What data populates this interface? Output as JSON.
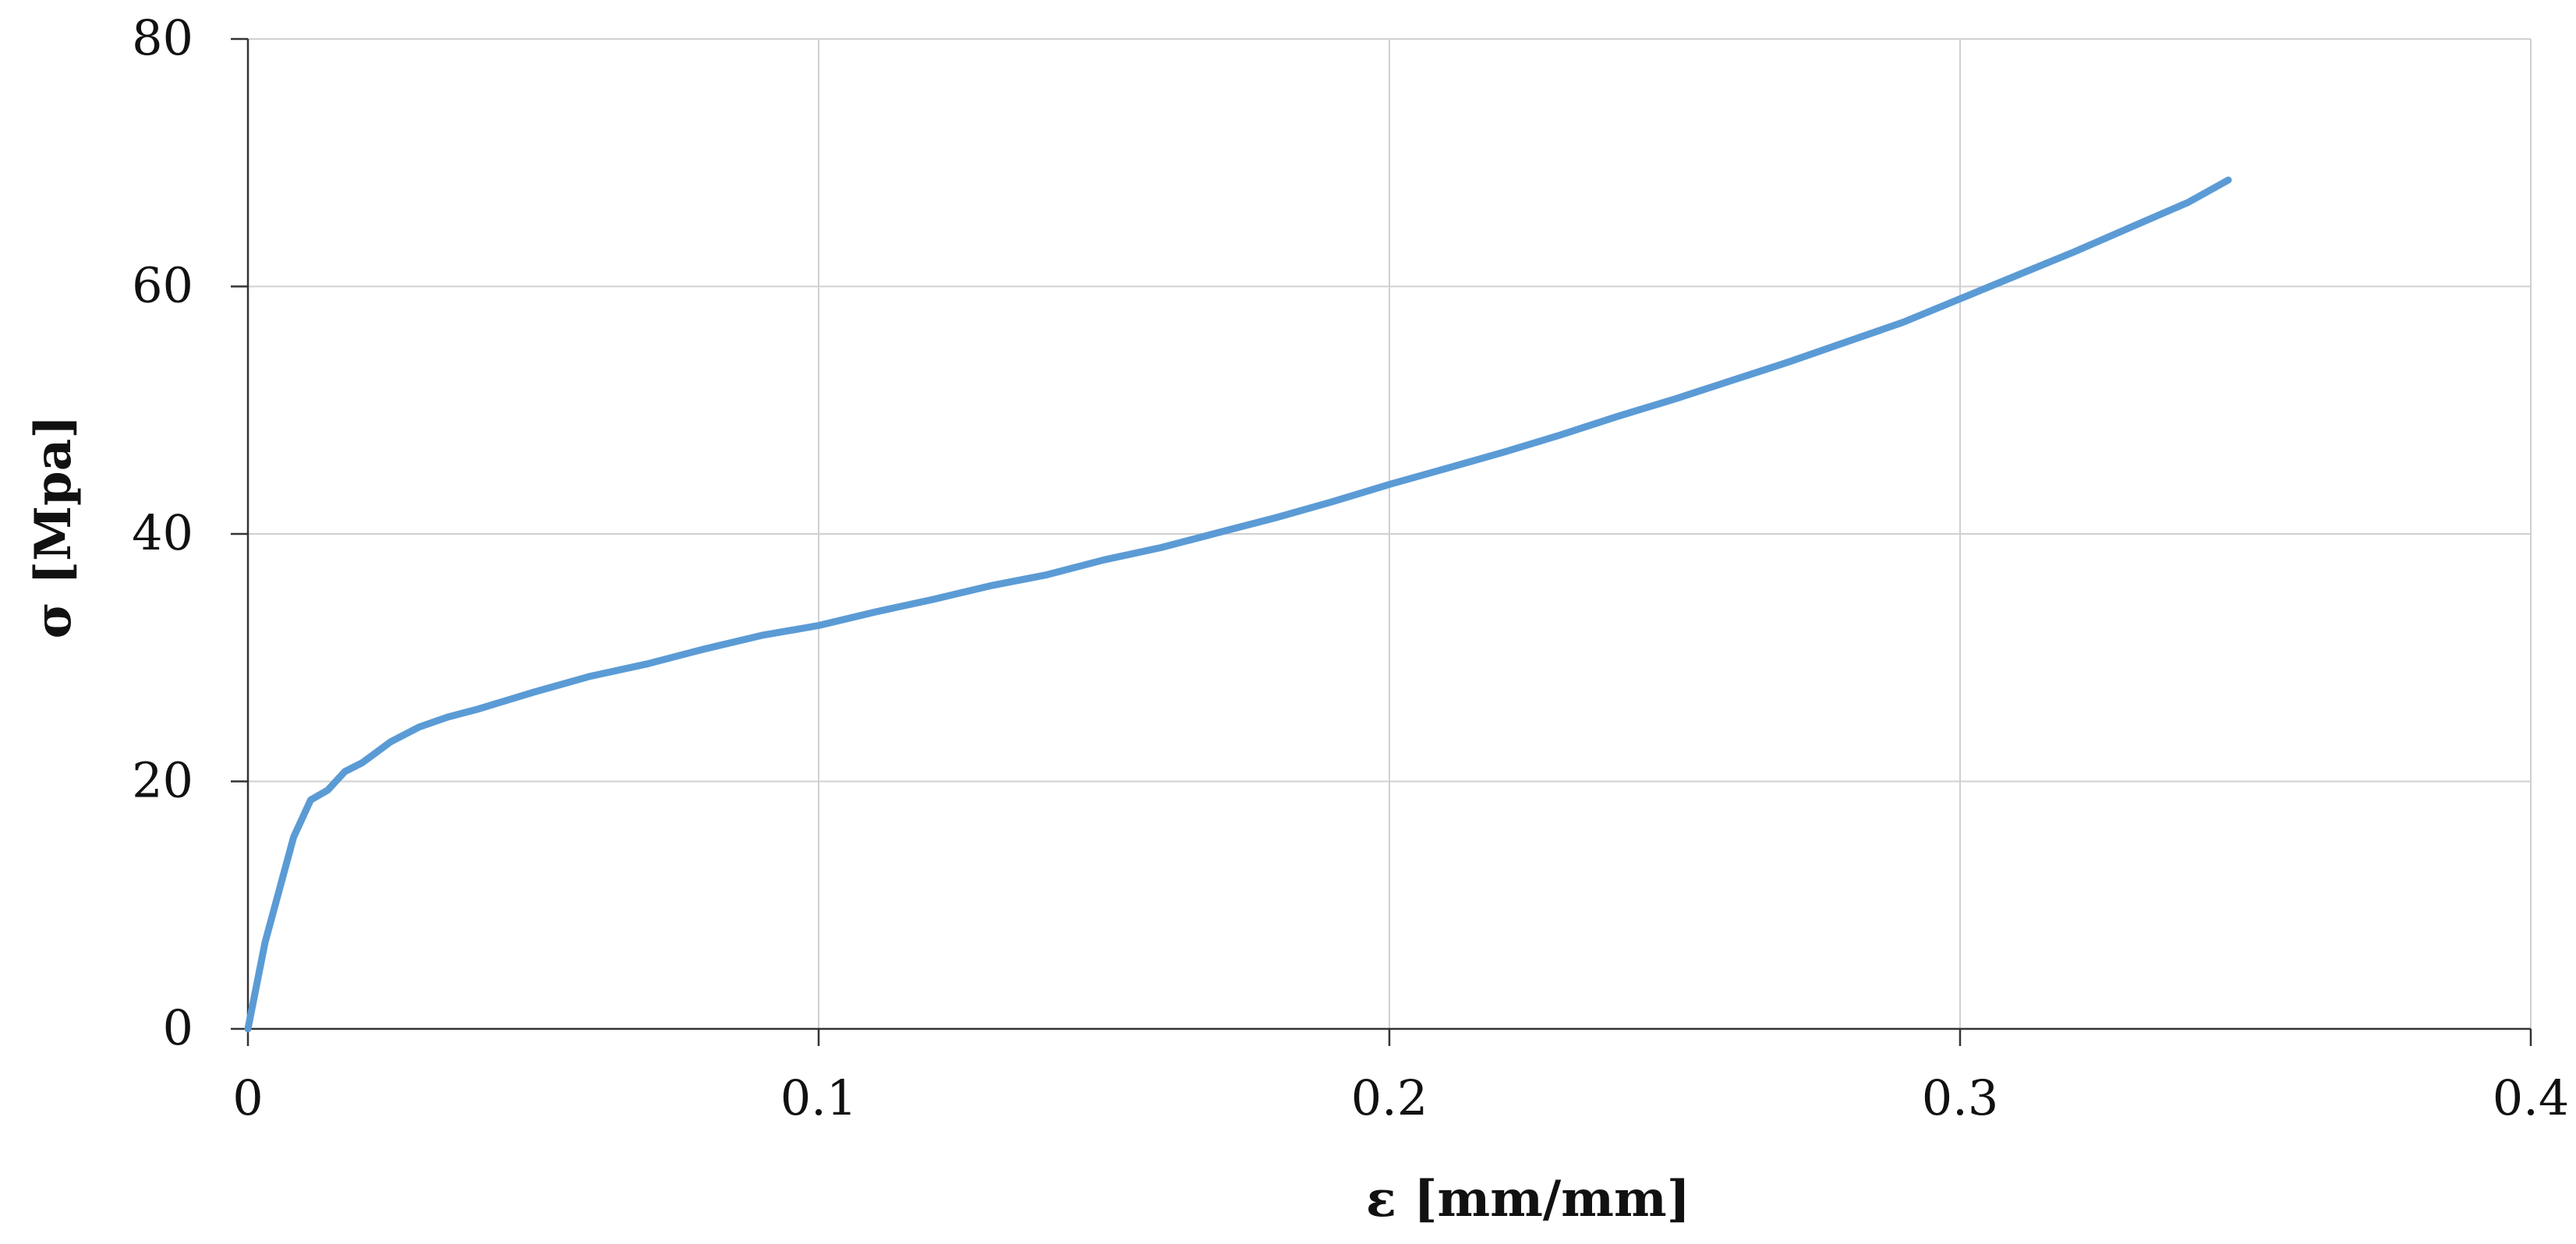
{
  "chart_data": {
    "type": "line",
    "title": "",
    "xlabel": "ε [mm/mm]",
    "ylabel": "σ [Mpa]",
    "xlim": [
      0,
      0.4
    ],
    "ylim": [
      0,
      80
    ],
    "x_ticks": [
      0,
      0.1,
      0.2,
      0.3,
      0.4
    ],
    "x_tick_labels": [
      "0",
      "0.1",
      "0.2",
      "0.3",
      "0.4"
    ],
    "y_ticks": [
      0,
      20,
      40,
      60,
      80
    ],
    "y_tick_labels": [
      "0",
      "20",
      "40",
      "60",
      "80"
    ],
    "grid": true,
    "legend": "none",
    "series": [
      {
        "color": "#5b9bd5",
        "x": [
          0,
          0.003,
          0.008,
          0.011,
          0.014,
          0.017,
          0.02,
          0.025,
          0.03,
          0.035,
          0.04,
          0.05,
          0.06,
          0.07,
          0.08,
          0.09,
          0.1,
          0.11,
          0.12,
          0.13,
          0.14,
          0.15,
          0.16,
          0.17,
          0.18,
          0.19,
          0.2,
          0.21,
          0.22,
          0.23,
          0.24,
          0.25,
          0.26,
          0.27,
          0.28,
          0.29,
          0.3,
          0.31,
          0.32,
          0.33,
          0.34,
          0.347
        ],
        "y": [
          0,
          7,
          15.5,
          18.5,
          19.3,
          20.8,
          21.5,
          23.2,
          24.4,
          25.2,
          25.8,
          27.2,
          28.5,
          29.5,
          30.7,
          31.8,
          32.6,
          33.7,
          34.7,
          35.8,
          36.7,
          37.9,
          38.9,
          40.1,
          41.3,
          42.6,
          44.0,
          45.3,
          46.6,
          48.0,
          49.5,
          50.9,
          52.4,
          53.9,
          55.5,
          57.1,
          59.0,
          60.9,
          62.8,
          64.8,
          66.8,
          68.6
        ]
      }
    ]
  }
}
